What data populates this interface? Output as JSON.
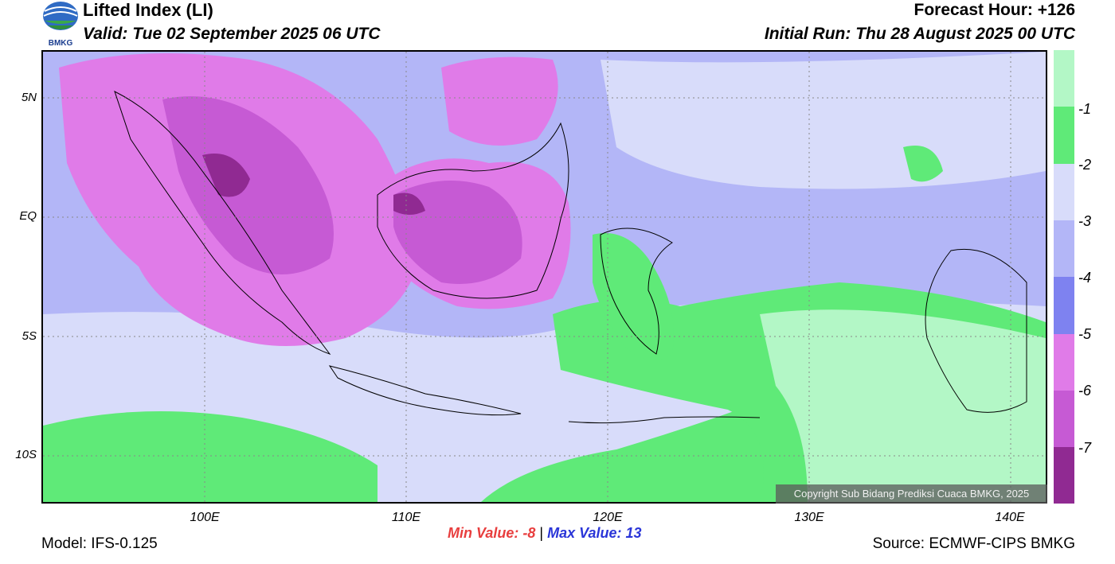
{
  "header": {
    "title": "Lifted Index (LI)",
    "valid": "Valid: Tue 02 September 2025 06 UTC",
    "forecast_hour": "Forecast Hour: +126",
    "initial_run": "Initial Run: Thu 28 August 2025 00 UTC",
    "logo_text": "BMKG"
  },
  "axes": {
    "y_labels": [
      "5N",
      "EQ",
      "5S",
      "10S"
    ],
    "x_labels": [
      "100E",
      "110E",
      "120E",
      "130E",
      "140E"
    ]
  },
  "legend": {
    "labels": [
      "-1",
      "-2",
      "-3",
      "-4",
      "-5",
      "-6",
      "-7"
    ],
    "colors": [
      "#b3f7c6",
      "#5fea78",
      "#d8dcfa",
      "#b3b6f7",
      "#7e82f0",
      "#e07be8",
      "#c65ad4",
      "#902a92"
    ]
  },
  "stats": {
    "min_label": "Min Value:",
    "min_value": "-8",
    "separator": "|",
    "max_label": "Max Value:",
    "max_value": "13"
  },
  "footer": {
    "model": "Model: IFS-0.125",
    "source": "Source: ECMWF-CIPS BMKG",
    "copyright": "Copyright Sub Bidang Prediksi Cuaca BMKG, 2025"
  }
}
